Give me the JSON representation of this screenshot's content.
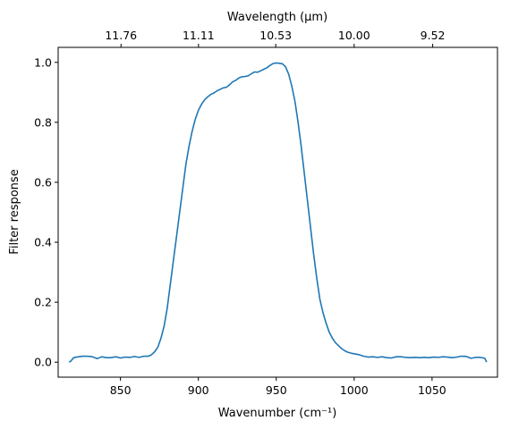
{
  "chart_data": {
    "type": "line",
    "xlabel": "Wavenumber (cm⁻¹)",
    "ylabel": "Filter response",
    "top_xlabel": "Wavelength (μm)",
    "xlim": [
      810,
      1092
    ],
    "ylim": [
      -0.05,
      1.05
    ],
    "x_ticks": [
      850,
      900,
      950,
      1000,
      1050
    ],
    "y_ticks": [
      0.0,
      0.2,
      0.4,
      0.6,
      0.8,
      1.0
    ],
    "y_tick_labels": [
      "0.0",
      "0.2",
      "0.4",
      "0.6",
      "0.8",
      "1.0"
    ],
    "top_ticks": [
      "11.76",
      "11.11",
      "10.53",
      "10.00",
      "9.52"
    ],
    "grid": false,
    "line_color": "#1f77b4",
    "series": [
      {
        "x": [
          817,
          818,
          820,
          823,
          826,
          829,
          832,
          835,
          838,
          841,
          844,
          847,
          850,
          853,
          856,
          859,
          862,
          865,
          868,
          870,
          872,
          874,
          876,
          878,
          880,
          882,
          884,
          886,
          888,
          890,
          892,
          894,
          896,
          898,
          900,
          902,
          904,
          906,
          908,
          910,
          912,
          914,
          916,
          918,
          920,
          922,
          924,
          926,
          928,
          930,
          932,
          934,
          936,
          938,
          940,
          942,
          944,
          946,
          948,
          950,
          952,
          954,
          956,
          958,
          960,
          962,
          964,
          966,
          968,
          970,
          972,
          974,
          976,
          978,
          980,
          982,
          984,
          986,
          988,
          990,
          992,
          994,
          996,
          998,
          1000,
          1003,
          1006,
          1009,
          1012,
          1015,
          1018,
          1021,
          1024,
          1027,
          1030,
          1033,
          1036,
          1039,
          1042,
          1045,
          1048,
          1051,
          1054,
          1057,
          1060,
          1063,
          1066,
          1069,
          1072,
          1075,
          1078,
          1081,
          1083,
          1084,
          1085
        ],
        "y": [
          0.0,
          0.003,
          0.015,
          0.018,
          0.02,
          0.02,
          0.018,
          0.012,
          0.018,
          0.015,
          0.015,
          0.018,
          0.014,
          0.017,
          0.016,
          0.019,
          0.016,
          0.02,
          0.02,
          0.025,
          0.035,
          0.05,
          0.08,
          0.12,
          0.18,
          0.26,
          0.34,
          0.42,
          0.5,
          0.58,
          0.66,
          0.72,
          0.77,
          0.81,
          0.84,
          0.86,
          0.875,
          0.885,
          0.893,
          0.898,
          0.905,
          0.91,
          0.915,
          0.917,
          0.925,
          0.935,
          0.94,
          0.948,
          0.952,
          0.953,
          0.955,
          0.962,
          0.968,
          0.967,
          0.972,
          0.977,
          0.982,
          0.99,
          0.996,
          0.998,
          0.997,
          0.995,
          0.985,
          0.96,
          0.92,
          0.87,
          0.8,
          0.72,
          0.63,
          0.54,
          0.45,
          0.36,
          0.28,
          0.21,
          0.165,
          0.13,
          0.1,
          0.08,
          0.065,
          0.055,
          0.045,
          0.038,
          0.033,
          0.03,
          0.028,
          0.025,
          0.02,
          0.017,
          0.018,
          0.016,
          0.018,
          0.015,
          0.014,
          0.018,
          0.018,
          0.016,
          0.015,
          0.016,
          0.015,
          0.016,
          0.015,
          0.017,
          0.016,
          0.018,
          0.017,
          0.015,
          0.017,
          0.02,
          0.019,
          0.013,
          0.016,
          0.016,
          0.014,
          0.012,
          0.0
        ]
      }
    ]
  }
}
